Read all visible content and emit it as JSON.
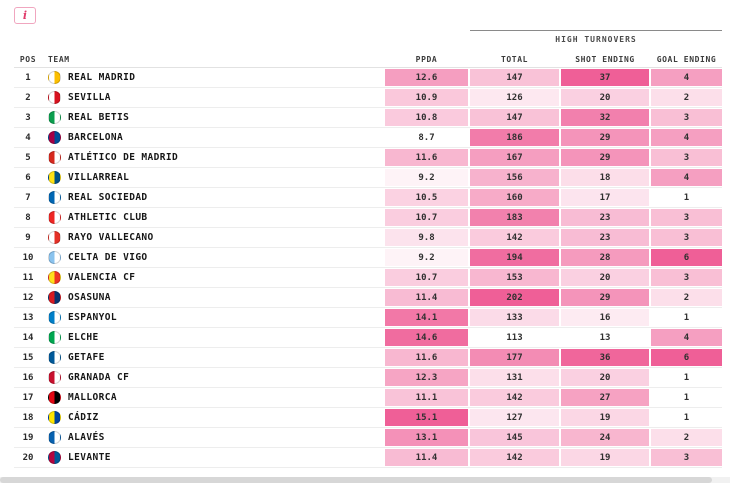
{
  "info_button": {
    "label": "i"
  },
  "header": {
    "group_label": "HIGH TURNOVERS",
    "columns": {
      "pos": "POS",
      "team": "TEAM",
      "ppda": "PPDA",
      "total": "TOTAL",
      "shot": "SHOT ENDING",
      "goal": "GOAL ENDING"
    }
  },
  "heatmap": {
    "accent": "#ef5f97",
    "scales": {
      "ppda": {
        "min": 8.7,
        "max": 15.1
      },
      "total": {
        "min": 113,
        "max": 202
      },
      "shot": {
        "min": 13,
        "max": 37
      },
      "goal": {
        "min": 1,
        "max": 6
      }
    }
  },
  "table": {
    "rows": [
      {
        "pos": 1,
        "team": "REAL MADRID",
        "ppda": 12.6,
        "total": 147,
        "shot": 37,
        "goal": 4,
        "logo_colors": [
          "#ffffff",
          "#fcbf00"
        ]
      },
      {
        "pos": 2,
        "team": "SEVILLA",
        "ppda": 10.9,
        "total": 126,
        "shot": 20,
        "goal": 2,
        "logo_colors": [
          "#ffffff",
          "#d8121f"
        ]
      },
      {
        "pos": 3,
        "team": "REAL BETIS",
        "ppda": 10.8,
        "total": 147,
        "shot": 32,
        "goal": 3,
        "logo_colors": [
          "#0b9e4e",
          "#ffffff"
        ]
      },
      {
        "pos": 4,
        "team": "BARCELONA",
        "ppda": 8.7,
        "total": 186,
        "shot": 29,
        "goal": 4,
        "logo_colors": [
          "#a50044",
          "#004d98"
        ]
      },
      {
        "pos": 5,
        "team": "ATLÉTICO DE MADRID",
        "ppda": 11.6,
        "total": 167,
        "shot": 29,
        "goal": 3,
        "logo_colors": [
          "#d6281e",
          "#ffffff"
        ]
      },
      {
        "pos": 6,
        "team": "VILLARREAL",
        "ppda": 9.2,
        "total": 156,
        "shot": 18,
        "goal": 4,
        "logo_colors": [
          "#ffe114",
          "#005187"
        ]
      },
      {
        "pos": 7,
        "team": "REAL SOCIEDAD",
        "ppda": 10.5,
        "total": 160,
        "shot": 17,
        "goal": 1,
        "logo_colors": [
          "#0066b3",
          "#ffffff"
        ]
      },
      {
        "pos": 8,
        "team": "ATHLETIC CLUB",
        "ppda": 10.7,
        "total": 183,
        "shot": 23,
        "goal": 3,
        "logo_colors": [
          "#ee2523",
          "#ffffff"
        ]
      },
      {
        "pos": 9,
        "team": "RAYO VALLECANO",
        "ppda": 9.8,
        "total": 142,
        "shot": 23,
        "goal": 3,
        "logo_colors": [
          "#ffffff",
          "#e53027"
        ]
      },
      {
        "pos": 10,
        "team": "CELTA DE VIGO",
        "ppda": 9.2,
        "total": 194,
        "shot": 28,
        "goal": 6,
        "logo_colors": [
          "#8ac3ee",
          "#ffffff"
        ]
      },
      {
        "pos": 11,
        "team": "VALENCIA CF",
        "ppda": 10.7,
        "total": 153,
        "shot": 20,
        "goal": 3,
        "logo_colors": [
          "#ffdf1c",
          "#ee3524"
        ]
      },
      {
        "pos": 12,
        "team": "OSASUNA",
        "ppda": 11.4,
        "total": 202,
        "shot": 29,
        "goal": 2,
        "logo_colors": [
          "#d91a21",
          "#0a346f"
        ]
      },
      {
        "pos": 13,
        "team": "ESPANYOL",
        "ppda": 14.1,
        "total": 133,
        "shot": 16,
        "goal": 1,
        "logo_colors": [
          "#007fc8",
          "#ffffff"
        ]
      },
      {
        "pos": 14,
        "team": "ELCHE",
        "ppda": 14.6,
        "total": 113,
        "shot": 13,
        "goal": 4,
        "logo_colors": [
          "#00a650",
          "#ffffff"
        ]
      },
      {
        "pos": 15,
        "team": "GETAFE",
        "ppda": 11.6,
        "total": 177,
        "shot": 36,
        "goal": 6,
        "logo_colors": [
          "#005999",
          "#ffffff"
        ]
      },
      {
        "pos": 16,
        "team": "GRANADA CF",
        "ppda": 12.3,
        "total": 131,
        "shot": 20,
        "goal": 1,
        "logo_colors": [
          "#c8102e",
          "#ffffff"
        ]
      },
      {
        "pos": 17,
        "team": "MALLORCA",
        "ppda": 11.1,
        "total": 142,
        "shot": 27,
        "goal": 1,
        "logo_colors": [
          "#e20613",
          "#000000"
        ]
      },
      {
        "pos": 18,
        "team": "CÁDIZ",
        "ppda": 15.1,
        "total": 127,
        "shot": 19,
        "goal": 1,
        "logo_colors": [
          "#ffe500",
          "#0045a0"
        ]
      },
      {
        "pos": 19,
        "team": "ALAVÉS",
        "ppda": 13.1,
        "total": 145,
        "shot": 24,
        "goal": 2,
        "logo_colors": [
          "#0761af",
          "#ffffff"
        ]
      },
      {
        "pos": 20,
        "team": "LEVANTE",
        "ppda": 11.4,
        "total": 142,
        "shot": 19,
        "goal": 3,
        "logo_colors": [
          "#b4053f",
          "#005999"
        ]
      }
    ]
  }
}
